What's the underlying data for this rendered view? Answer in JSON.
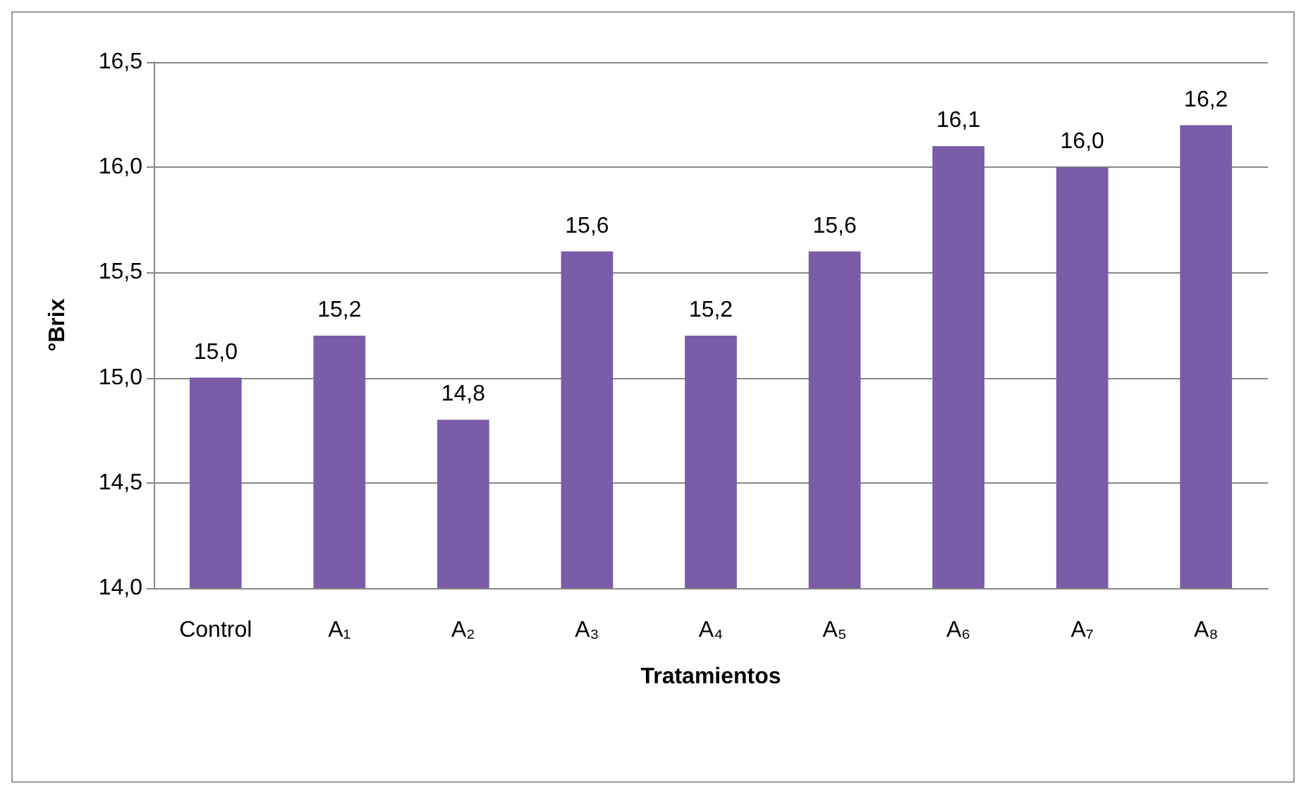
{
  "chart_data": {
    "type": "bar",
    "xlabel": "Tratamientos",
    "ylabel": "°Brix",
    "categories": [
      "Control",
      "A₁",
      "A₂",
      "A₃",
      "A₄",
      "A₅",
      "A₆",
      "A₇",
      "A₈"
    ],
    "values": [
      15.0,
      15.2,
      14.8,
      15.6,
      15.2,
      15.6,
      16.1,
      16.0,
      16.2
    ],
    "value_labels": [
      "15,0",
      "15,2",
      "14,8",
      "15,6",
      "15,2",
      "15,6",
      "16,1",
      "16,0",
      "16,2"
    ],
    "color": "#7b5ca8",
    "ylim": [
      14,
      16.5
    ],
    "yticks": [
      {
        "value": 14,
        "label": "14,0"
      },
      {
        "value": 14.5,
        "label": "14,5"
      },
      {
        "value": 15,
        "label": "15,0"
      },
      {
        "value": 15.5,
        "label": "15,5"
      },
      {
        "value": 16,
        "label": "16,0"
      },
      {
        "value": 16.5,
        "label": "16,5"
      }
    ],
    "grid": "y"
  }
}
